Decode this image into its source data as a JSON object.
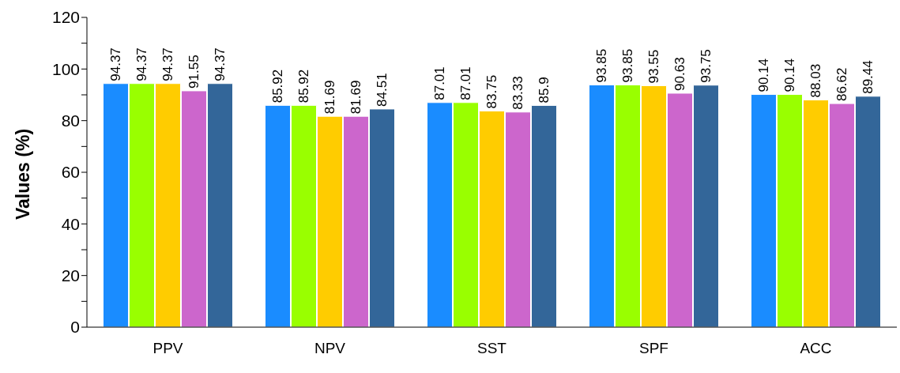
{
  "chart_data": {
    "type": "bar",
    "ylabel": "Values (%)",
    "categories": [
      "PPV",
      "NPV",
      "SST",
      "SPF",
      "ACC"
    ],
    "series": [
      {
        "color": "#1a8cff",
        "values": [
          94.37,
          85.92,
          87.01,
          93.85,
          90.14
        ]
      },
      {
        "color": "#99ff00",
        "values": [
          94.37,
          85.92,
          87.01,
          93.85,
          90.14
        ]
      },
      {
        "color": "#ffcc00",
        "values": [
          94.37,
          81.69,
          83.75,
          93.55,
          88.03
        ]
      },
      {
        "color": "#cc66cc",
        "values": [
          91.55,
          81.69,
          83.33,
          90.63,
          86.62
        ]
      },
      {
        "color": "#336699",
        "values": [
          94.37,
          84.51,
          85.9,
          93.75,
          89.44
        ]
      }
    ],
    "ylim": [
      0,
      120
    ],
    "yticks": [
      0,
      {
        "value": 10,
        "label": null
      },
      20,
      {
        "value": 30,
        "label": null
      },
      40,
      {
        "value": 50,
        "label": null
      },
      60,
      {
        "value": 70,
        "label": null
      },
      80,
      {
        "value": 90,
        "label": null
      },
      100,
      {
        "value": 110,
        "label": null
      },
      120
    ],
    "grid": false,
    "legend": false,
    "data_labels": true
  }
}
